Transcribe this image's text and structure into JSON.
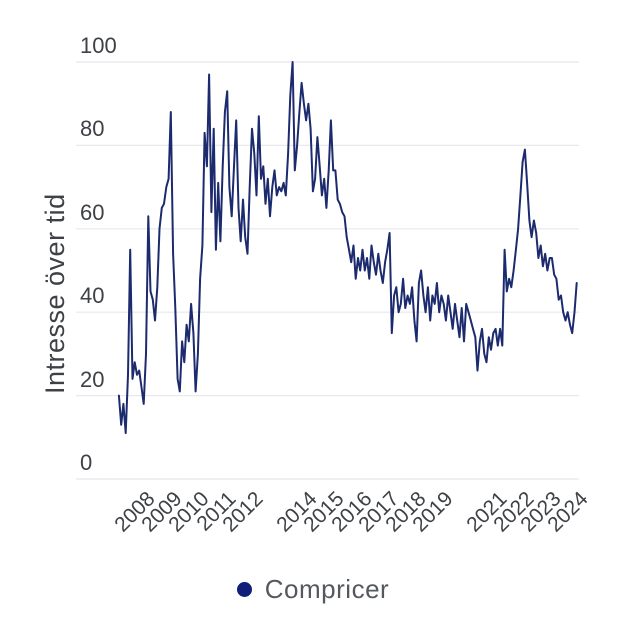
{
  "chart": {
    "y_axis_title": "Intresse över tid",
    "legend": {
      "label": "Compricer"
    },
    "style": {
      "background": "#ffffff",
      "line_color": "#1c2a6e",
      "legend_marker_color": "#10207a",
      "grid_color": "#e8e8ed",
      "tick_label_color": "#3e4145",
      "axis_title_color": "#3e4145",
      "legend_text_color": "#55595e"
    }
  },
  "chart_data": {
    "type": "line",
    "title": "",
    "xlabel": "",
    "ylabel": "Intresse över tid",
    "ylim": [
      0,
      100
    ],
    "y_ticks": [
      0,
      20,
      40,
      60,
      80,
      100
    ],
    "grid": "horizontal",
    "legend_position": "bottom-center",
    "x_tick_labels": [
      "2008",
      "2009",
      "2010",
      "2011",
      "2012",
      "2014",
      "2015",
      "2016",
      "2017",
      "2018",
      "2019",
      "2021",
      "2022",
      "2023",
      "2024"
    ],
    "x_tick_years": [
      2008,
      2009,
      2010,
      2011,
      2012,
      2014,
      2015,
      2016,
      2017,
      2018,
      2019,
      2021,
      2022,
      2023,
      2024
    ],
    "x_start_year": 2007.0,
    "x_resolution": "monthly-approx",
    "series": [
      {
        "name": "Compricer",
        "values": [
          20,
          13,
          18,
          11,
          25,
          55,
          24,
          28,
          25,
          26,
          22,
          18,
          30,
          63,
          45,
          43,
          38,
          46,
          60,
          65,
          66,
          70,
          72,
          88,
          54,
          41,
          24,
          21,
          33,
          28,
          37,
          33,
          42,
          35,
          21,
          30,
          48,
          56,
          83,
          75,
          97,
          64,
          84,
          55,
          71,
          57,
          75,
          88,
          93,
          70,
          63,
          75,
          86,
          65,
          57,
          67,
          58,
          54,
          70,
          84,
          78,
          68,
          87,
          72,
          75,
          66,
          72,
          63,
          70,
          74,
          68,
          70,
          69,
          71,
          68,
          78,
          92,
          100,
          74,
          80,
          88,
          95,
          90,
          86,
          90,
          84,
          69,
          72,
          82,
          75,
          68,
          72,
          65,
          74,
          86,
          74,
          74,
          67,
          66,
          64,
          63,
          58,
          55,
          52,
          56,
          48,
          53,
          50,
          55,
          50,
          53,
          48,
          56,
          52,
          49,
          54,
          50,
          47,
          52,
          55,
          59,
          35,
          44,
          46,
          40,
          42,
          48,
          41,
          44,
          42,
          46,
          38,
          33,
          47,
          50,
          44,
          40,
          46,
          38,
          44,
          42,
          47,
          40,
          44,
          42,
          38,
          44,
          40,
          36,
          42,
          38,
          34,
          41,
          33,
          42,
          40,
          38,
          36,
          34,
          26,
          33,
          36,
          30,
          28,
          34,
          31,
          35,
          36,
          32,
          36,
          32,
          55,
          45,
          48,
          46,
          50,
          55,
          60,
          68,
          76,
          79,
          71,
          62,
          58,
          62,
          59,
          53,
          56,
          51,
          54,
          50,
          53,
          53,
          49,
          48,
          43,
          44,
          40,
          38,
          40,
          37,
          35,
          40,
          47
        ]
      }
    ]
  }
}
